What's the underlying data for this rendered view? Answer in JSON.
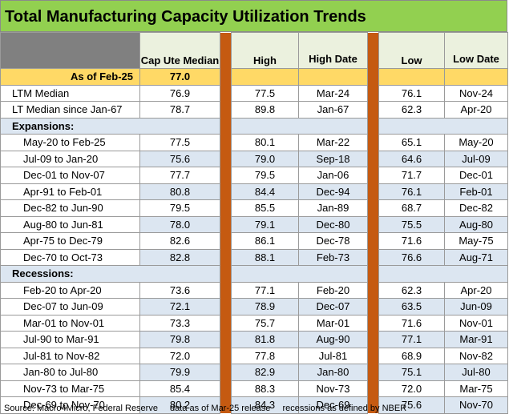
{
  "title": "Total Manufacturing Capacity Utilization Trends",
  "headers": {
    "median": "Cap Ute Median",
    "high": "High",
    "high_date": "High Date",
    "low": "Low",
    "low_date": "Low Date"
  },
  "asof": {
    "label": "As of Feb-25",
    "median": "77.0"
  },
  "summary": [
    {
      "label": "LTM Median",
      "median": "76.9",
      "high": "77.5",
      "high_date": "Mar-24",
      "low": "76.1",
      "low_date": "Nov-24"
    },
    {
      "label": "LT Median since Jan-67",
      "median": "78.7",
      "high": "89.8",
      "high_date": "Jan-67",
      "low": "62.3",
      "low_date": "Apr-20"
    }
  ],
  "expansions_label": "Expansions:",
  "expansions": [
    {
      "label": "May-20 to Feb-25",
      "median": "77.5",
      "high": "80.1",
      "high_date": "Mar-22",
      "low": "65.1",
      "low_date": "May-20"
    },
    {
      "label": "Jul-09 to Jan-20",
      "median": "75.6",
      "high": "79.0",
      "high_date": "Sep-18",
      "low": "64.6",
      "low_date": "Jul-09"
    },
    {
      "label": "Dec-01 to Nov-07",
      "median": "77.7",
      "high": "79.5",
      "high_date": "Jan-06",
      "low": "71.7",
      "low_date": "Dec-01"
    },
    {
      "label": "Apr-91 to Feb-01",
      "median": "80.8",
      "high": "84.4",
      "high_date": "Dec-94",
      "low": "76.1",
      "low_date": "Feb-01"
    },
    {
      "label": "Dec-82 to Jun-90",
      "median": "79.5",
      "high": "85.5",
      "high_date": "Jan-89",
      "low": "68.7",
      "low_date": "Dec-82"
    },
    {
      "label": "Aug-80 to Jun-81",
      "median": "78.0",
      "high": "79.1",
      "high_date": "Dec-80",
      "low": "75.5",
      "low_date": "Aug-80"
    },
    {
      "label": "Apr-75 to Dec-79",
      "median": "82.6",
      "high": "86.1",
      "high_date": "Dec-78",
      "low": "71.6",
      "low_date": "May-75"
    },
    {
      "label": "Dec-70 to Oct-73",
      "median": "82.8",
      "high": "88.1",
      "high_date": "Feb-73",
      "low": "76.6",
      "low_date": "Aug-71"
    }
  ],
  "recessions_label": "Recessions:",
  "recessions": [
    {
      "label": "Feb-20 to Apr-20",
      "median": "73.6",
      "high": "77.1",
      "high_date": "Feb-20",
      "low": "62.3",
      "low_date": "Apr-20"
    },
    {
      "label": "Dec-07 to Jun-09",
      "median": "72.1",
      "high": "78.9",
      "high_date": "Dec-07",
      "low": "63.5",
      "low_date": "Jun-09"
    },
    {
      "label": "Mar-01 to Nov-01",
      "median": "73.3",
      "high": "75.7",
      "high_date": "Mar-01",
      "low": "71.6",
      "low_date": "Nov-01"
    },
    {
      "label": "Jul-90 to Mar-91",
      "median": "79.8",
      "high": "81.8",
      "high_date": "Aug-90",
      "low": "77.1",
      "low_date": "Mar-91"
    },
    {
      "label": "Jul-81 to Nov-82",
      "median": "72.0",
      "high": "77.8",
      "high_date": "Jul-81",
      "low": "68.9",
      "low_date": "Nov-82"
    },
    {
      "label": "Jan-80 to Jul-80",
      "median": "79.9",
      "high": "82.9",
      "high_date": "Jan-80",
      "low": "75.1",
      "low_date": "Jul-80"
    },
    {
      "label": "Nov-73 to Mar-75",
      "median": "85.4",
      "high": "88.3",
      "high_date": "Nov-73",
      "low": "72.0",
      "low_date": "Mar-75"
    },
    {
      "label": "Dec-69 to Nov-70",
      "median": "80.2",
      "high": "84.3",
      "high_date": "Dec-69",
      "low": "75.6",
      "low_date": "Nov-70"
    }
  ],
  "footer": {
    "source": "Source: Macro4Micro, Federal Reserve",
    "asof": "data as of Mar-25 release",
    "note": "recessions as defined by NBER"
  }
}
